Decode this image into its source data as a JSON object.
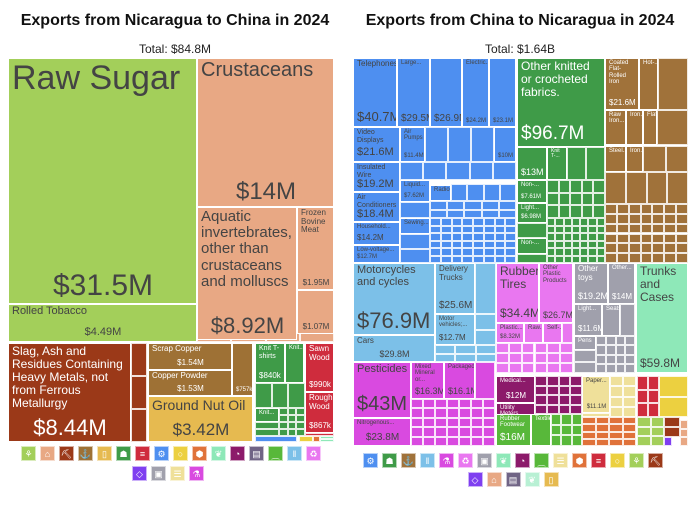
{
  "chart_data": [
    {
      "type": "treemap",
      "title": "Exports from Nicaragua to China in 2024",
      "total": "Total: $84.8M",
      "tiles": [
        {
          "name": "Raw Sugar",
          "value": "$31.5M",
          "color": "#a3cf5a"
        },
        {
          "name": "Rolled Tobacco",
          "value": "$4.49M",
          "color": "#a3cf5a"
        },
        {
          "name": "Crustaceans",
          "value": "$14M",
          "color": "#e8a884"
        },
        {
          "name": "Aquatic invertebrates, other than crustaceans and molluscs",
          "value": "$8.92M",
          "color": "#e8a884"
        },
        {
          "name": "Frozen Bovine Meat",
          "value": "$1.95M",
          "color": "#e8a884"
        },
        {
          "name": null,
          "value": "$1.07M",
          "color": "#e8a884"
        },
        {
          "name": "Slag, Ash and Residues Containing Heavy Metals, not from Ferrous Metallurgy",
          "value": "$8.44M",
          "color": "#9b3918"
        },
        {
          "name": "Scrap Copper",
          "value": "$1.54M",
          "color": "#9e7135"
        },
        {
          "name": "Copper Powder",
          "value": "$1.53M",
          "color": "#9e7135"
        },
        {
          "name": null,
          "value": "$757k",
          "color": "#9e7135"
        },
        {
          "name": "Ground Nut Oil",
          "value": "$3.42M",
          "color": "#e6ba50"
        },
        {
          "name": "Knit T-shirts",
          "value": "$840k",
          "color": "#3f9b48"
        },
        {
          "name": "Knit...",
          "value": null,
          "color": "#3f9b48"
        },
        {
          "name": "Knit...",
          "value": null,
          "color": "#3f9b48"
        },
        {
          "name": "Sawn Wood",
          "value": "$990k",
          "color": "#cf2c3d"
        },
        {
          "name": "Rough Wood",
          "value": "$867k",
          "color": "#cf2c3d"
        }
      ],
      "legend_icons": [
        {
          "icon": "wheat-icon",
          "color": "#a3cf5a"
        },
        {
          "icon": "cow-icon",
          "color": "#e8a884"
        },
        {
          "icon": "pickaxe-icon",
          "color": "#9b3918"
        },
        {
          "icon": "anvil-icon",
          "color": "#9e7135"
        },
        {
          "icon": "bottle-icon",
          "color": "#e6ba50"
        },
        {
          "icon": "shirt-icon",
          "color": "#3f9b48"
        },
        {
          "icon": "wood-icon",
          "color": "#cf2c3d"
        },
        {
          "icon": "gear-icon",
          "color": "#4e8ff0"
        },
        {
          "icon": "fruit-icon",
          "color": "#ecd040"
        },
        {
          "icon": "stone-icon",
          "color": "#e0723a"
        },
        {
          "icon": "leather-icon",
          "color": "#8ee8b8"
        },
        {
          "icon": "gauge-icon",
          "color": "#8c1a6a"
        },
        {
          "icon": "easel-icon",
          "color": "#706485"
        },
        {
          "icon": "shoe-icon",
          "color": "#58b83a"
        },
        {
          "icon": "road-icon",
          "color": "#7cc0e8"
        },
        {
          "icon": "recycle-icon",
          "color": "#e977f0"
        },
        {
          "icon": "diamond-icon",
          "color": "#7f3ff0"
        },
        {
          "icon": "box-icon",
          "color": "#a0a0ac"
        },
        {
          "icon": "scroll-icon",
          "color": "#efe09a"
        },
        {
          "icon": "flask-icon",
          "color": "#d94ae0"
        }
      ]
    },
    {
      "type": "treemap",
      "title": "Exports from China to Nicaragua in 2024",
      "total": "Total: $1.64B",
      "tiles": [
        {
          "name": "Telephones",
          "value": "$40.7M",
          "color": "#4e8ff0"
        },
        {
          "name": "Large...",
          "value": "$29.5M",
          "color": "#4e8ff0"
        },
        {
          "name": null,
          "value": "$26.9M",
          "color": "#4e8ff0"
        },
        {
          "name": "Electric...",
          "value": "$24.2M",
          "color": "#4e8ff0"
        },
        {
          "name": null,
          "value": "$23.1M",
          "color": "#4e8ff0"
        },
        {
          "name": "Video Displays",
          "value": "$21.6M",
          "color": "#4e8ff0"
        },
        {
          "name": "Air Pumps",
          "value": "$11.4M",
          "color": "#4e8ff0"
        },
        {
          "name": null,
          "value": "$10M",
          "color": "#4e8ff0"
        },
        {
          "name": "Insulated Wire",
          "value": "$19.2M",
          "color": "#4e8ff0"
        },
        {
          "name": "Air Conditioners",
          "value": "$18.4M",
          "color": "#4e8ff0"
        },
        {
          "name": "Household...",
          "value": "$14.2M",
          "color": "#4e8ff0"
        },
        {
          "name": "Low-voltage...",
          "value": "$12.7M",
          "color": "#4e8ff0"
        },
        {
          "name": "Liquid...",
          "value": "$7.62M",
          "color": "#4e8ff0"
        },
        {
          "name": "Radio...",
          "value": null,
          "color": "#4e8ff0"
        },
        {
          "name": "Sewing...",
          "value": null,
          "color": "#4e8ff0"
        },
        {
          "name": "Other knitted or crocheted fabrics.",
          "value": "$96.7M",
          "color": "#3f9b48"
        },
        {
          "name": null,
          "value": "$13M",
          "color": "#3f9b48"
        },
        {
          "name": "Knit T-...",
          "value": null,
          "color": "#3f9b48"
        },
        {
          "name": "Non-...",
          "value": "$7.61M",
          "color": "#3f9b48"
        },
        {
          "name": "Light...",
          "value": "$6.98M",
          "color": "#3f9b48"
        },
        {
          "name": "Non-...",
          "value": null,
          "color": "#3f9b48"
        },
        {
          "name": "Coated Flat-Rolled Iron",
          "value": "$21.6M",
          "color": "#a0723a"
        },
        {
          "name": "Hot-...",
          "value": null,
          "color": "#a0723a"
        },
        {
          "name": "Raw Iron...",
          "value": null,
          "color": "#a0723a"
        },
        {
          "name": "Iron...",
          "value": null,
          "color": "#a0723a"
        },
        {
          "name": "Flat...",
          "value": null,
          "color": "#a0723a"
        },
        {
          "name": "Steel...",
          "value": null,
          "color": "#a0723a"
        },
        {
          "name": "Iron...",
          "value": null,
          "color": "#a0723a"
        },
        {
          "name": "Motorcycles and cycles",
          "value": "$76.9M",
          "color": "#7cc0e8"
        },
        {
          "name": "Cars",
          "value": "$29.8M",
          "color": "#7cc0e8"
        },
        {
          "name": "Delivery Trucks",
          "value": "$25.6M",
          "color": "#7cc0e8"
        },
        {
          "name": "Motor vehicles;...",
          "value": "$12.7M",
          "color": "#7cc0e8"
        },
        {
          "name": "Rubber Tires",
          "value": "$34.4M",
          "color": "#e977f0"
        },
        {
          "name": "Other Plastic Products",
          "value": "$26.7M",
          "color": "#e977f0"
        },
        {
          "name": "Plastic...",
          "value": "$8.32M",
          "color": "#e977f0"
        },
        {
          "name": "Raw...",
          "value": null,
          "color": "#e977f0"
        },
        {
          "name": "Self-...",
          "value": null,
          "color": "#e977f0"
        },
        {
          "name": "Other toys",
          "value": "$19.2M",
          "color": "#a0a0ac"
        },
        {
          "name": "Other...",
          "value": "$14M",
          "color": "#a0a0ac"
        },
        {
          "name": "Light...",
          "value": "$11.6M",
          "color": "#a0a0ac"
        },
        {
          "name": "Seats",
          "value": null,
          "color": "#a0a0ac"
        },
        {
          "name": "Pens",
          "value": null,
          "color": "#a0a0ac"
        },
        {
          "name": "Trunks and Cases",
          "value": "$59.8M",
          "color": "#8ee8b8"
        },
        {
          "name": "Pesticides",
          "value": "$43M",
          "color": "#d94ae0"
        },
        {
          "name": "Nitrogenous...",
          "value": "$23.8M",
          "color": "#d94ae0"
        },
        {
          "name": "Mixed Mineral or...",
          "value": "$16.3M",
          "color": "#d94ae0"
        },
        {
          "name": "Packaged...",
          "value": "$16.1M",
          "color": "#d94ae0"
        },
        {
          "name": "Medical...",
          "value": "$12M",
          "color": "#8c1a6a"
        },
        {
          "name": "Utility Meters",
          "value": null,
          "color": "#8c1a6a"
        },
        {
          "name": "Rubber Footwear",
          "value": "$16M",
          "color": "#58b83a"
        },
        {
          "name": "Textile...",
          "value": null,
          "color": "#58b83a"
        },
        {
          "name": "Paper...",
          "value": "$11.1M",
          "color": "#efe09a"
        }
      ],
      "legend_icons": [
        {
          "icon": "gear-icon",
          "color": "#4e8ff0"
        },
        {
          "icon": "shirt-icon",
          "color": "#3f9b48"
        },
        {
          "icon": "anvil-icon",
          "color": "#a0723a"
        },
        {
          "icon": "road-icon",
          "color": "#7cc0e8"
        },
        {
          "icon": "flask-icon",
          "color": "#d94ae0"
        },
        {
          "icon": "recycle-icon",
          "color": "#e977f0"
        },
        {
          "icon": "box-icon",
          "color": "#a0a0ac"
        },
        {
          "icon": "leather-icon",
          "color": "#8ee8b8"
        },
        {
          "icon": "gauge-icon",
          "color": "#8c1a6a"
        },
        {
          "icon": "shoe-icon",
          "color": "#58b83a"
        },
        {
          "icon": "scroll-icon",
          "color": "#efe09a"
        },
        {
          "icon": "stone-icon",
          "color": "#e0723a"
        },
        {
          "icon": "wood-icon",
          "color": "#cf2c3d"
        },
        {
          "icon": "fruit-icon",
          "color": "#ecd040"
        },
        {
          "icon": "wheat-icon",
          "color": "#a3cf5a"
        },
        {
          "icon": "pickaxe-icon",
          "color": "#9b3918"
        },
        {
          "icon": "diamond-icon",
          "color": "#7f3ff0"
        },
        {
          "icon": "cow-icon",
          "color": "#e8a884"
        },
        {
          "icon": "easel-icon",
          "color": "#706485"
        },
        {
          "icon": "leather-icon",
          "color": "#b8f0d4"
        },
        {
          "icon": "bottle-icon",
          "color": "#e6ba50"
        }
      ]
    }
  ]
}
